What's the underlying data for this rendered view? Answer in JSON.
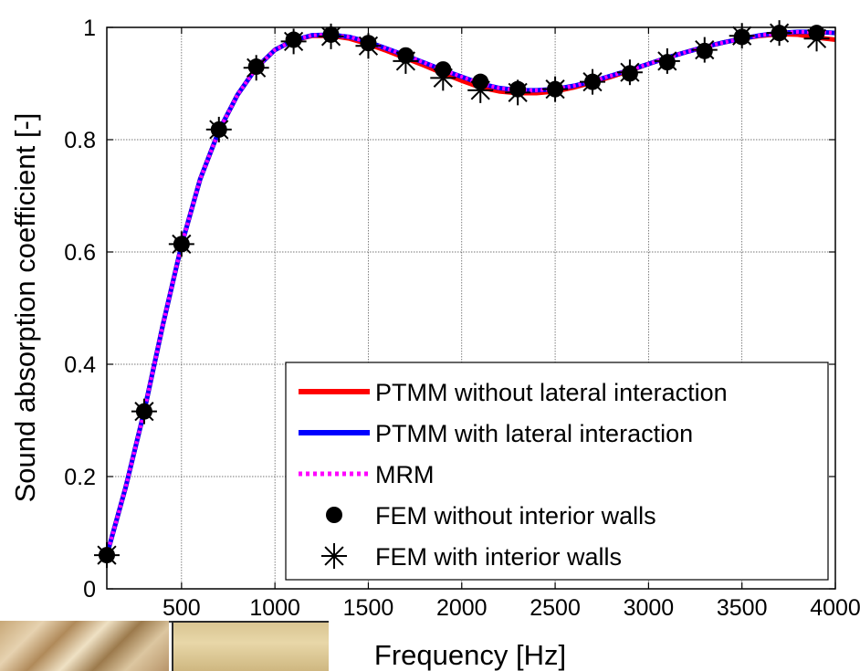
{
  "chart_data": {
    "type": "line",
    "xlabel": "Frequency [Hz]",
    "ylabel": "Sound absorption coefficient [-]",
    "xlim": [
      100,
      4000
    ],
    "ylim": [
      0,
      1
    ],
    "xticks": [
      500,
      1000,
      1500,
      2000,
      2500,
      3000,
      3500,
      4000
    ],
    "xtick_labels": [
      "500",
      "1000",
      "1500",
      "2000",
      "2500",
      "3000",
      "3500",
      "4000"
    ],
    "yticks": [
      0,
      0.2,
      0.4,
      0.6,
      0.8,
      1
    ],
    "ytick_labels": [
      "0",
      "0.2",
      "0.4",
      "0.6",
      "0.8",
      "1"
    ],
    "grid": true,
    "legend_position": "bottom-right",
    "series": [
      {
        "name": "PTMM without lateral interaction",
        "style": "solid-line",
        "color": "#ff0000",
        "x": [
          100,
          200,
          300,
          400,
          500,
          600,
          700,
          800,
          900,
          1000,
          1100,
          1200,
          1300,
          1400,
          1500,
          1600,
          1700,
          1800,
          1900,
          2000,
          2100,
          2200,
          2300,
          2400,
          2500,
          2600,
          2700,
          2800,
          2900,
          3000,
          3100,
          3200,
          3300,
          3400,
          3500,
          3600,
          3700,
          3800,
          3900,
          4000
        ],
        "y": [
          0.06,
          0.18,
          0.316,
          0.47,
          0.612,
          0.73,
          0.816,
          0.88,
          0.928,
          0.96,
          0.977,
          0.985,
          0.985,
          0.98,
          0.97,
          0.958,
          0.945,
          0.932,
          0.918,
          0.905,
          0.893,
          0.886,
          0.883,
          0.883,
          0.886,
          0.893,
          0.902,
          0.912,
          0.923,
          0.935,
          0.946,
          0.956,
          0.965,
          0.973,
          0.98,
          0.985,
          0.988,
          0.987,
          0.982,
          0.978
        ]
      },
      {
        "name": "PTMM with lateral interaction",
        "style": "solid-line",
        "color": "#0000ff",
        "x": [
          100,
          200,
          300,
          400,
          500,
          600,
          700,
          800,
          900,
          1000,
          1100,
          1200,
          1300,
          1400,
          1500,
          1600,
          1700,
          1800,
          1900,
          2000,
          2100,
          2200,
          2300,
          2400,
          2500,
          2600,
          2700,
          2800,
          2900,
          3000,
          3100,
          3200,
          3300,
          3400,
          3500,
          3600,
          3700,
          3800,
          3900,
          4000
        ],
        "y": [
          0.06,
          0.18,
          0.316,
          0.47,
          0.612,
          0.73,
          0.816,
          0.88,
          0.928,
          0.96,
          0.977,
          0.986,
          0.987,
          0.983,
          0.974,
          0.962,
          0.95,
          0.937,
          0.924,
          0.912,
          0.9,
          0.892,
          0.888,
          0.888,
          0.89,
          0.896,
          0.904,
          0.914,
          0.924,
          0.935,
          0.946,
          0.956,
          0.965,
          0.973,
          0.98,
          0.986,
          0.99,
          0.992,
          0.992,
          0.99
        ]
      },
      {
        "name": "MRM",
        "style": "dotted-line",
        "color": "#ff00ff",
        "x": [
          100,
          200,
          300,
          400,
          500,
          600,
          700,
          800,
          900,
          1000,
          1100,
          1200,
          1300,
          1400,
          1500,
          1600,
          1700,
          1800,
          1900,
          2000,
          2100,
          2200,
          2300,
          2400,
          2500,
          2600,
          2700,
          2800,
          2900,
          3000,
          3100,
          3200,
          3300,
          3400,
          3500,
          3600,
          3700,
          3800,
          3900,
          4000
        ],
        "y": [
          0.06,
          0.18,
          0.316,
          0.47,
          0.612,
          0.73,
          0.816,
          0.88,
          0.928,
          0.96,
          0.977,
          0.986,
          0.987,
          0.983,
          0.974,
          0.962,
          0.95,
          0.937,
          0.924,
          0.912,
          0.9,
          0.892,
          0.888,
          0.888,
          0.89,
          0.896,
          0.904,
          0.914,
          0.924,
          0.935,
          0.946,
          0.956,
          0.965,
          0.973,
          0.98,
          0.986,
          0.99,
          0.992,
          0.992,
          0.99
        ]
      },
      {
        "name": "FEM without interior walls",
        "style": "filled-circle",
        "color": "#000000",
        "x": [
          100,
          300,
          500,
          700,
          900,
          1100,
          1300,
          1500,
          1700,
          1900,
          2100,
          2300,
          2500,
          2700,
          2900,
          3100,
          3300,
          3500,
          3700,
          3900
        ],
        "y": [
          0.06,
          0.316,
          0.614,
          0.818,
          0.93,
          0.978,
          0.987,
          0.972,
          0.95,
          0.925,
          0.903,
          0.89,
          0.89,
          0.903,
          0.918,
          0.938,
          0.958,
          0.983,
          0.99,
          0.99
        ]
      },
      {
        "name": "FEM with interior walls",
        "style": "asterisk",
        "color": "#000000",
        "x": [
          100,
          300,
          500,
          700,
          900,
          1100,
          1300,
          1500,
          1700,
          1900,
          2100,
          2300,
          2500,
          2700,
          2900,
          3100,
          3300,
          3500,
          3700,
          3900
        ],
        "y": [
          0.06,
          0.316,
          0.614,
          0.818,
          0.928,
          0.975,
          0.984,
          0.967,
          0.94,
          0.91,
          0.888,
          0.884,
          0.89,
          0.903,
          0.92,
          0.94,
          0.96,
          0.985,
          0.99,
          0.98
        ]
      }
    ]
  }
}
